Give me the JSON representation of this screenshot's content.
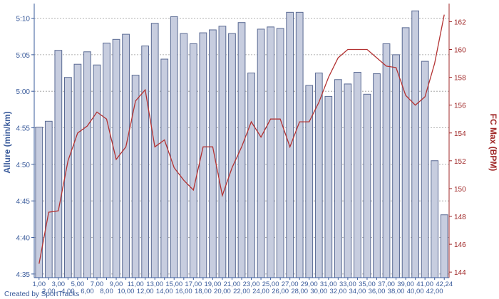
{
  "chart_data": {
    "type": "bar+line",
    "x_tick_labels": [
      "1,00",
      "2,00",
      "3,00",
      "4,00",
      "5,00",
      "6,00",
      "7,00",
      "8,00",
      "9,00",
      "10,00",
      "11,00",
      "12,00",
      "13,00",
      "14,00",
      "15,00",
      "16,00",
      "17,00",
      "18,00",
      "19,00",
      "20,00",
      "21,00",
      "22,00",
      "23,00",
      "24,00",
      "25,00",
      "26,00",
      "27,00",
      "28,00",
      "29,00",
      "30,00",
      "31,00",
      "32,00",
      "33,00",
      "34,00",
      "35,00",
      "36,00",
      "37,00",
      "38,00",
      "39,00",
      "40,00",
      "41,00",
      "42,00",
      "42,24"
    ],
    "left_axis": {
      "label": "Allure (min/km)",
      "ticks": [
        "5:10",
        "5:05",
        "5:00",
        "4:55",
        "4:50",
        "4:45",
        "4:40",
        "4:35"
      ],
      "tick_values_sec": [
        310,
        305,
        300,
        295,
        290,
        285,
        280,
        275
      ],
      "range_sec": [
        274.5,
        312
      ],
      "color": "#3a5b9b"
    },
    "right_axis": {
      "label": "FC Max (BPM)",
      "ticks": [
        "162",
        "160",
        "158",
        "156",
        "154",
        "152",
        "150",
        "148",
        "146",
        "144"
      ],
      "tick_values": [
        162,
        160,
        158,
        156,
        154,
        152,
        150,
        148,
        146,
        144
      ],
      "range": [
        143.6,
        163.3
      ],
      "color": "#a02828"
    },
    "bar_series": {
      "axis": "left",
      "units": "seconds per km",
      "values": [
        295.1,
        295.9,
        305.6,
        301.9,
        303.7,
        305.4,
        303.6,
        306.6,
        307.1,
        307.8,
        302.2,
        306.2,
        309.3,
        304.4,
        310.2,
        307.9,
        306.5,
        308.0,
        308.4,
        308.9,
        307.9,
        309.4,
        302.5,
        308.5,
        308.8,
        308.6,
        310.8,
        310.8,
        300.8,
        302.5,
        299.3,
        301.6,
        301.0,
        302.6,
        299.6,
        302.4,
        306.5,
        305.0,
        308.7,
        311.0,
        304.1,
        290.5,
        283.1
      ],
      "fill": "#c7cddf",
      "stroke": "#5a6a93"
    },
    "line_series": {
      "axis": "right",
      "values": [
        144.6,
        148.3,
        148.4,
        152.0,
        154.0,
        154.5,
        155.5,
        155.0,
        152.1,
        153.0,
        156.3,
        157.1,
        153.0,
        153.5,
        151.5,
        150.6,
        149.9,
        153.0,
        153.0,
        149.5,
        151.5,
        153.0,
        154.8,
        153.7,
        155.0,
        155.0,
        153.0,
        154.8,
        154.8,
        156.2,
        158.0,
        159.4,
        160.0,
        160.0,
        160.0,
        159.4,
        158.8,
        158.7,
        156.7,
        156.0,
        156.6,
        159.0,
        162.5
      ],
      "color": "#b33232"
    },
    "grid": true
  },
  "credit": "Created by SportTracks"
}
